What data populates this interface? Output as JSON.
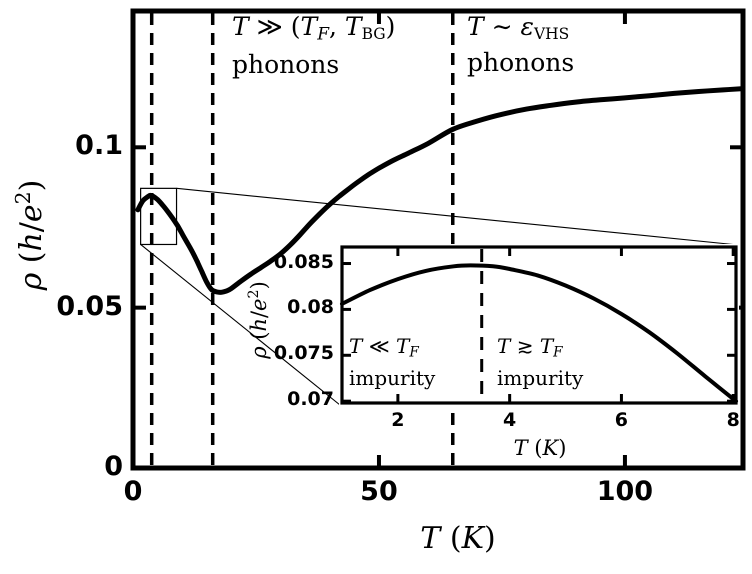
{
  "colors": {
    "ink": "#000000",
    "background": "#ffffff"
  },
  "chart_data": [
    {
      "type": "line",
      "title": "",
      "xlabel": "T (K)",
      "ylabel": "ρ (h/e²)",
      "xlim": [
        0,
        124
      ],
      "ylim": [
        0,
        0.1425
      ],
      "grid": false,
      "legend": "none",
      "xticks": {
        "values": [
          0,
          50,
          100
        ],
        "labels": [
          "0",
          "50",
          "100"
        ]
      },
      "yticks": {
        "values": [
          0,
          0.05,
          0.1
        ],
        "labels": [
          "0",
          "0.05",
          "0.1"
        ]
      },
      "dashed_vlines": [
        3.8,
        16.2,
        65
      ],
      "zoom_box": {
        "x": [
          1.55,
          8.85
        ],
        "y": [
          0.0697,
          0.0872
        ]
      },
      "annotations": [
        {
          "text": "T ≫ (T_F, T_BG) phonons",
          "region": "between dashed lines 2 and 3"
        },
        {
          "text": "T ∼ ε_VHS phonons",
          "region": "right of dashed line 3"
        }
      ],
      "series": [
        {
          "name": "resistivity vs temperature",
          "x": [
            1,
            2,
            3,
            3.5,
            4,
            5,
            6,
            7,
            8,
            9,
            10,
            11,
            12,
            13,
            14,
            15,
            16,
            17,
            18,
            19,
            20,
            22,
            24,
            26,
            28,
            30,
            32,
            34,
            36,
            38,
            40,
            42,
            44,
            46,
            48,
            50,
            53,
            56,
            60,
            65,
            70,
            75,
            80,
            85,
            90,
            95,
            100,
            105,
            110,
            115,
            120,
            124
          ],
          "y": [
            0.0805,
            0.0833,
            0.0846,
            0.085,
            0.0848,
            0.0837,
            0.082,
            0.0801,
            0.078,
            0.0757,
            0.073,
            0.0703,
            0.0676,
            0.0645,
            0.0612,
            0.0579,
            0.0556,
            0.0549,
            0.0548,
            0.0552,
            0.056,
            0.0583,
            0.0605,
            0.0625,
            0.0645,
            0.0668,
            0.0696,
            0.0728,
            0.0762,
            0.0793,
            0.0822,
            0.0848,
            0.0872,
            0.0895,
            0.0916,
            0.0935,
            0.096,
            0.0982,
            0.1012,
            0.1056,
            0.1082,
            0.1103,
            0.1119,
            0.1131,
            0.1141,
            0.1148,
            0.1154,
            0.1161,
            0.1168,
            0.1174,
            0.1179,
            0.1183
          ]
        }
      ]
    },
    {
      "type": "line",
      "title": "",
      "xlabel": "T (K)",
      "ylabel": "ρ (h/e²)",
      "xlim": [
        1,
        8.05
      ],
      "ylim": [
        0.0698,
        0.0868
      ],
      "grid": false,
      "legend": "none",
      "xticks": {
        "values": [
          2,
          4,
          6,
          8
        ],
        "labels": [
          "2",
          "4",
          "6",
          "8"
        ]
      },
      "yticks": {
        "values": [
          0.07,
          0.075,
          0.08,
          0.085
        ],
        "labels": [
          "0.07",
          "0.075",
          "0.08",
          "0.085"
        ]
      },
      "dashed_vlines": [
        3.5
      ],
      "annotations": [
        {
          "text": "T ≪ T_F impurity",
          "region": "left of dashed line"
        },
        {
          "text": "T ≳ T_F impurity",
          "region": "right of dashed line"
        }
      ],
      "series": [
        {
          "name": "resistivity vs temperature (low-T zoom)",
          "x": [
            1,
            1.5,
            2,
            2.5,
            3,
            3.3,
            3.7,
            4,
            4.5,
            5,
            5.5,
            6,
            6.5,
            7,
            7.5,
            8.05
          ],
          "y": [
            0.0806,
            0.0821,
            0.0833,
            0.0842,
            0.0847,
            0.0848,
            0.0847,
            0.0844,
            0.0837,
            0.0826,
            0.0812,
            0.0795,
            0.0775,
            0.0752,
            0.0727,
            0.07
          ]
        }
      ]
    }
  ],
  "text": {
    "main_left_line1": [
      {
        "t": "T",
        "s": "it"
      },
      {
        "t": " ≫ (",
        "s": "rm"
      },
      {
        "t": "T",
        "s": "it"
      },
      {
        "t": "F",
        "s": "sub"
      },
      {
        "t": ", ",
        "s": "rm"
      },
      {
        "t": "T",
        "s": "it"
      },
      {
        "t": "BG",
        "s": "subrm"
      },
      {
        "t": ")",
        "s": "rm"
      }
    ],
    "main_left_line2": "phonons",
    "main_right_line1": [
      {
        "t": "T",
        "s": "it"
      },
      {
        "t": " ∼ ",
        "s": "rm"
      },
      {
        "t": "ε",
        "s": "it"
      },
      {
        "t": "VHS",
        "s": "subrm"
      }
    ],
    "main_right_line2": "phonons",
    "inset_left_line1": [
      {
        "t": "T",
        "s": "it"
      },
      {
        "t": " ≪ ",
        "s": "rm"
      },
      {
        "t": "T",
        "s": "it"
      },
      {
        "t": "F",
        "s": "sub"
      }
    ],
    "inset_left_line2": "impurity",
    "inset_right_line1": [
      {
        "t": "T",
        "s": "it"
      },
      {
        "t": " ≳ ",
        "s": "rm"
      },
      {
        "t": "T",
        "s": "it"
      },
      {
        "t": "F",
        "s": "sub"
      }
    ],
    "inset_right_line2": "impurity",
    "xlabel": [
      {
        "t": "T",
        "s": "it"
      },
      {
        "t": " (",
        "s": "rm"
      },
      {
        "t": "K",
        "s": "it"
      },
      {
        "t": ")",
        "s": "rm"
      }
    ],
    "ylabel": [
      {
        "t": "ρ",
        "s": "it"
      },
      {
        "t": " (",
        "s": "rm"
      },
      {
        "t": "h",
        "s": "it"
      },
      {
        "t": "/",
        "s": "rm"
      },
      {
        "t": "e",
        "s": "it"
      },
      {
        "t": "2",
        "s": "sup"
      },
      {
        "t": ")",
        "s": "rm"
      }
    ]
  }
}
